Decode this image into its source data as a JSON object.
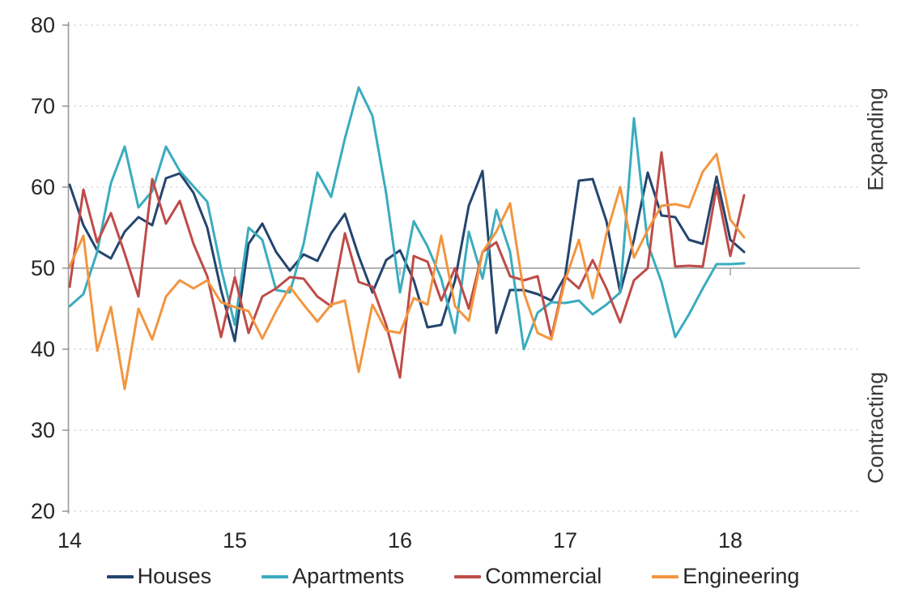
{
  "chart_data": {
    "type": "line",
    "title": "",
    "xlabel": "",
    "ylabel": "",
    "ylim": [
      20,
      80
    ],
    "y_ticks": [
      20,
      30,
      40,
      50,
      60,
      70,
      80
    ],
    "baseline_value": 50,
    "grid": "horizontal dotted, solid line at 50",
    "legend_position": "bottom",
    "x_tick_labels": [
      "14",
      "15",
      "16",
      "17",
      "18"
    ],
    "right_labels": [
      "Expanding",
      "Contracting"
    ],
    "axis_color": "#9a9a9a",
    "grid_color": "#c6c6c6",
    "tick_label_color": "#262626",
    "months": [
      "Jan-14",
      "Feb-14",
      "Mar-14",
      "Apr-14",
      "May-14",
      "Jun-14",
      "Jul-14",
      "Aug-14",
      "Sep-14",
      "Oct-14",
      "Nov-14",
      "Dec-14",
      "Jan-15",
      "Feb-15",
      "Mar-15",
      "Apr-15",
      "May-15",
      "Jun-15",
      "Jul-15",
      "Aug-15",
      "Sep-15",
      "Oct-15",
      "Nov-15",
      "Dec-15",
      "Jan-16",
      "Feb-16",
      "Mar-16",
      "Apr-16",
      "May-16",
      "Jun-16",
      "Jul-16",
      "Aug-16",
      "Sep-16",
      "Oct-16",
      "Nov-16",
      "Dec-16",
      "Jan-17",
      "Feb-17",
      "Mar-17",
      "Apr-17",
      "May-17",
      "Jun-17",
      "Jul-17",
      "Aug-17",
      "Sep-17",
      "Oct-17",
      "Nov-17",
      "Dec-17",
      "Jan-18",
      "Feb-18"
    ],
    "series": [
      {
        "name": "Houses",
        "color": "#24456e",
        "values": [
          60.3,
          55.3,
          52.2,
          51.2,
          54.5,
          56.3,
          55.3,
          61.1,
          61.7,
          59.3,
          55.0,
          47.3,
          41.0,
          53.0,
          55.5,
          52.0,
          49.7,
          51.7,
          50.9,
          54.3,
          56.7,
          51.5,
          47.0,
          51.0,
          52.2,
          48.5,
          42.7,
          43.0,
          48.5,
          57.7,
          62.0,
          42.0,
          47.3,
          47.3,
          46.8,
          46.0,
          49.0,
          60.8,
          61.0,
          55.8,
          47.0,
          53.5,
          61.8,
          56.5,
          56.3,
          53.5,
          53.0,
          61.3,
          53.5,
          52.0
        ]
      },
      {
        "name": "Apartments",
        "color": "#3aacbe",
        "values": [
          45.3,
          46.8,
          52.0,
          60.5,
          65.0,
          57.5,
          59.5,
          65.0,
          62.0,
          60.1,
          58.2,
          50.0,
          43.0,
          55.0,
          53.5,
          47.3,
          47.0,
          53.0,
          61.8,
          58.8,
          66.0,
          72.3,
          68.8,
          59.2,
          47.0,
          55.8,
          52.7,
          48.7,
          42.0,
          54.5,
          48.7,
          57.2,
          52.0,
          40.0,
          44.5,
          45.8,
          45.7,
          46.0,
          44.3,
          45.5,
          47.0,
          68.5,
          53.0,
          48.3,
          41.5,
          44.3,
          47.5,
          50.5,
          50.5,
          50.6
        ]
      },
      {
        "name": "Commercial",
        "color": "#be4b48",
        "values": [
          47.7,
          59.7,
          53.2,
          56.8,
          51.8,
          46.5,
          61.0,
          55.5,
          58.3,
          53.0,
          49.0,
          41.5,
          48.9,
          42.0,
          46.5,
          47.5,
          48.9,
          48.7,
          46.5,
          45.3,
          54.3,
          48.3,
          47.7,
          43.0,
          36.5,
          51.5,
          50.8,
          46.0,
          50.0,
          45.0,
          52.0,
          53.2,
          49.0,
          48.5,
          49.0,
          41.5,
          49.0,
          47.5,
          51.0,
          47.5,
          43.3,
          48.5,
          50.0,
          64.3,
          50.2,
          50.3,
          50.2,
          60.0,
          51.5,
          59.0
        ]
      },
      {
        "name": "Engineering",
        "color": "#f3953f",
        "values": [
          50.2,
          54.0,
          39.8,
          45.2,
          35.1,
          45.0,
          41.2,
          46.5,
          48.5,
          47.5,
          48.5,
          45.8,
          45.2,
          44.7,
          41.3,
          44.7,
          47.7,
          45.5,
          43.4,
          45.5,
          46.0,
          37.2,
          45.5,
          42.3,
          42.0,
          46.3,
          45.5,
          54.0,
          45.3,
          43.5,
          52.0,
          54.5,
          58.0,
          47.0,
          42.0,
          41.2,
          48.5,
          53.5,
          46.3,
          54.2,
          60.0,
          51.3,
          54.7,
          57.7,
          57.9,
          57.5,
          61.9,
          64.1,
          56.0,
          53.8
        ]
      }
    ]
  },
  "legend": {
    "items": [
      "Houses",
      "Apartments",
      "Commercial",
      "Engineering"
    ]
  }
}
